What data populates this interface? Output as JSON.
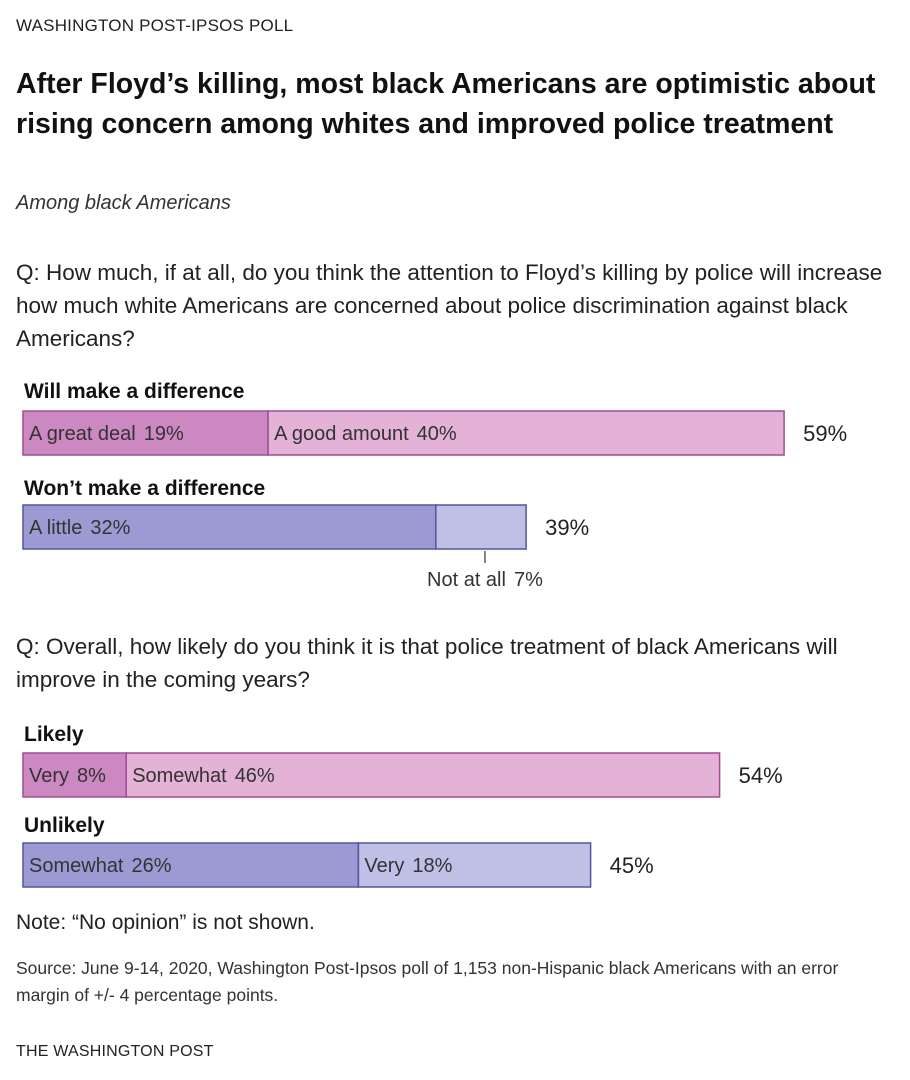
{
  "kicker": "WASHINGTON POST-IPSOS POLL",
  "title": "After Floyd’s killing, most black Americans are optimistic about rising concern among whites and improved police treatment",
  "subtitle": "Among black Americans",
  "note": "Note: “No opinion” is not shown.",
  "source": "Source: June 9-14, 2020, Washington Post-Ipsos poll of 1,153 non-Hispanic black Americans with an error margin of +/- 4 percentage points.",
  "footer": "THE WASHINGTON POST",
  "colors": {
    "pink_dark": "#cc88c0",
    "pink_light": "#e3b2d6",
    "pink_stroke": "#a04d92",
    "purple_dark": "#9c9ad2",
    "purple_light": "#c0bfe6",
    "purple_stroke": "#56549c"
  },
  "chart_data": [
    {
      "type": "bar",
      "question": "Q: How much, if at all, do you think the attention to Floyd’s killing by police will increase how much white Americans are concerned about police discrimination against black Americans?",
      "groups": [
        {
          "label": "Will make a difference",
          "total": "59%",
          "segments": [
            {
              "name": "A great deal",
              "value": 19,
              "display": "19%",
              "color": "pink_dark"
            },
            {
              "name": "A good amount",
              "value": 40,
              "display": "40%",
              "color": "pink_light"
            }
          ]
        },
        {
          "label": "Won’t make a difference",
          "total": "39%",
          "segments": [
            {
              "name": "A little",
              "value": 32,
              "display": "32%",
              "color": "purple_dark"
            },
            {
              "name": "Not at all",
              "value": 7,
              "display": "7%",
              "color": "purple_light",
              "callout": true
            }
          ]
        }
      ]
    },
    {
      "type": "bar",
      "question": "Q: Overall, how likely do you think it is that police treatment of black Americans will improve in the coming years?",
      "groups": [
        {
          "label": "Likely",
          "total": "54%",
          "segments": [
            {
              "name": "Very",
              "value": 8,
              "display": "8%",
              "color": "pink_dark"
            },
            {
              "name": "Somewhat",
              "value": 46,
              "display": "46%",
              "color": "pink_light"
            }
          ]
        },
        {
          "label": "Unlikely",
          "total": "45%",
          "segments": [
            {
              "name": "Somewhat",
              "value": 26,
              "display": "26%",
              "color": "purple_dark"
            },
            {
              "name": "Very",
              "value": 18,
              "display": "18%",
              "color": "purple_light"
            }
          ]
        }
      ]
    }
  ]
}
